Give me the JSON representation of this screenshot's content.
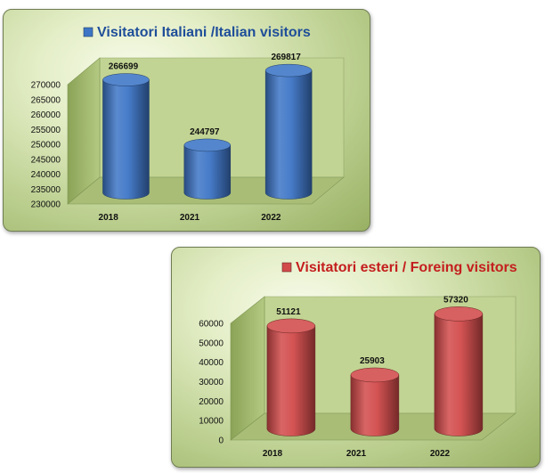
{
  "chart_data": [
    {
      "type": "bar",
      "title": "Visitatori Italiani /Italian visitors",
      "categories": [
        "2018",
        "2021",
        "2022"
      ],
      "values": [
        266699,
        244797,
        269817
      ],
      "ylim": [
        230000,
        270000
      ],
      "yticks": [
        "230000",
        "235000",
        "240000",
        "245000",
        "250000",
        "255000",
        "260000",
        "265000",
        "270000"
      ],
      "data_labels": [
        "266699",
        "244797",
        "269817"
      ],
      "color": "#3d75c6",
      "title_color": "#1f4e99",
      "legend_position": "top"
    },
    {
      "type": "bar",
      "title": "Visitatori esteri / Foreing visitors",
      "categories": [
        "2018",
        "2021",
        "2022"
      ],
      "values": [
        51121,
        25903,
        57320
      ],
      "ylim": [
        0,
        60000
      ],
      "yticks": [
        "0",
        "10000",
        "20000",
        "30000",
        "40000",
        "50000",
        "60000"
      ],
      "data_labels": [
        "51121",
        "25903",
        "57320"
      ],
      "color": "#d24a4a",
      "title_color": "#c41e1e",
      "legend_position": "top"
    }
  ]
}
